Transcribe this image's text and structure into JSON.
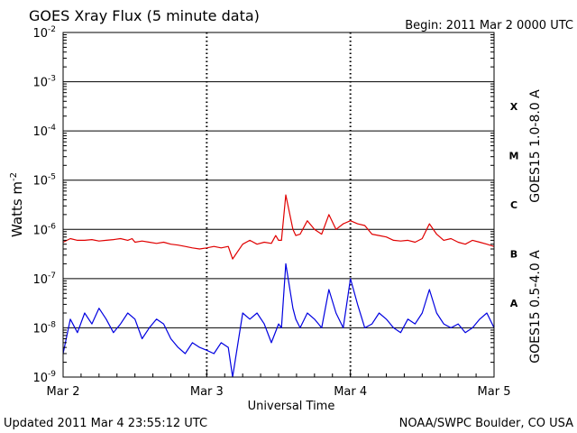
{
  "chart_data": {
    "type": "line",
    "title": "GOES Xray Flux (5 minute data)",
    "begin_label": "Begin:  2011 Mar 2 0000 UTC",
    "xlabel": "Universal Time",
    "ylabel": "Watts m",
    "ylabel_exponent": "-2",
    "y_scale": "log",
    "ylim": [
      1e-09,
      0.01
    ],
    "xlim_days": [
      0,
      3
    ],
    "x_ticks": [
      {
        "day": 0,
        "label": "Mar 2"
      },
      {
        "day": 1,
        "label": "Mar 3"
      },
      {
        "day": 2,
        "label": "Mar 4"
      },
      {
        "day": 3,
        "label": "Mar 5"
      }
    ],
    "y_ticks": [
      {
        "exp": -2,
        "label": "10",
        "sup": "-2"
      },
      {
        "exp": -3,
        "label": "10",
        "sup": "-3"
      },
      {
        "exp": -4,
        "label": "10",
        "sup": "-4"
      },
      {
        "exp": -5,
        "label": "10",
        "sup": "-5"
      },
      {
        "exp": -6,
        "label": "10",
        "sup": "-6"
      },
      {
        "exp": -7,
        "label": "10",
        "sup": "-7"
      },
      {
        "exp": -8,
        "label": "10",
        "sup": "-8"
      },
      {
        "exp": -9,
        "label": "10",
        "sup": "-9"
      }
    ],
    "flare_classes": [
      {
        "label": "X",
        "exp": -3.5
      },
      {
        "label": "M",
        "exp": -4.5
      },
      {
        "label": "C",
        "exp": -5.5
      },
      {
        "label": "B",
        "exp": -6.5
      },
      {
        "label": "A",
        "exp": -7.5
      }
    ],
    "grid": true,
    "series": [
      {
        "name": "GOES15 1.0-8.0 A",
        "color": "#e00000",
        "x": [
          0.0,
          0.05,
          0.1,
          0.15,
          0.2,
          0.25,
          0.3,
          0.35,
          0.4,
          0.45,
          0.48,
          0.5,
          0.55,
          0.6,
          0.65,
          0.7,
          0.75,
          0.8,
          0.85,
          0.9,
          0.95,
          1.0,
          1.05,
          1.1,
          1.15,
          1.18,
          1.25,
          1.3,
          1.35,
          1.4,
          1.45,
          1.48,
          1.5,
          1.52,
          1.55,
          1.6,
          1.62,
          1.65,
          1.7,
          1.75,
          1.8,
          1.85,
          1.9,
          1.95,
          2.0,
          2.05,
          2.1,
          2.15,
          2.2,
          2.25,
          2.3,
          2.35,
          2.4,
          2.45,
          2.5,
          2.55,
          2.6,
          2.65,
          2.7,
          2.75,
          2.8,
          2.85,
          2.9,
          2.95,
          3.0
        ],
        "y": [
          5.5e-07,
          6.5e-07,
          6e-07,
          6e-07,
          6.2e-07,
          5.8e-07,
          6e-07,
          6.2e-07,
          6.5e-07,
          6e-07,
          6.5e-07,
          5.5e-07,
          5.8e-07,
          5.5e-07,
          5.2e-07,
          5.5e-07,
          5e-07,
          4.8e-07,
          4.5e-07,
          4.2e-07,
          4e-07,
          4.2e-07,
          4.5e-07,
          4.2e-07,
          4.5e-07,
          2.5e-07,
          5e-07,
          6e-07,
          5e-07,
          5.5e-07,
          5.2e-07,
          7.5e-07,
          6e-07,
          6e-07,
          5e-06,
          1e-06,
          7.5e-07,
          8e-07,
          1.5e-06,
          1e-06,
          8e-07,
          2e-06,
          1e-06,
          1.3e-06,
          1.5e-06,
          1.3e-06,
          1.2e-06,
          8e-07,
          7.5e-07,
          7e-07,
          6e-07,
          5.8e-07,
          6e-07,
          5.5e-07,
          6.5e-07,
          1.3e-06,
          8e-07,
          6e-07,
          6.5e-07,
          5.5e-07,
          5e-07,
          6e-07,
          5.5e-07,
          5e-07,
          4.5e-07
        ]
      },
      {
        "name": "GOES15 0.5-4.0 A",
        "color": "#0000e0",
        "x": [
          0.0,
          0.05,
          0.1,
          0.15,
          0.2,
          0.25,
          0.3,
          0.35,
          0.4,
          0.45,
          0.5,
          0.55,
          0.6,
          0.65,
          0.7,
          0.75,
          0.8,
          0.85,
          0.9,
          0.95,
          1.0,
          1.05,
          1.1,
          1.15,
          1.18,
          1.25,
          1.3,
          1.35,
          1.4,
          1.45,
          1.5,
          1.52,
          1.55,
          1.6,
          1.62,
          1.65,
          1.7,
          1.75,
          1.8,
          1.85,
          1.9,
          1.95,
          2.0,
          2.05,
          2.1,
          2.15,
          2.2,
          2.25,
          2.3,
          2.35,
          2.4,
          2.45,
          2.5,
          2.55,
          2.6,
          2.65,
          2.7,
          2.75,
          2.8,
          2.85,
          2.9,
          2.95,
          3.0
        ],
        "y": [
          3e-09,
          1.5e-08,
          8e-09,
          2e-08,
          1.2e-08,
          2.5e-08,
          1.5e-08,
          8e-09,
          1.2e-08,
          2e-08,
          1.5e-08,
          6e-09,
          1e-08,
          1.5e-08,
          1.2e-08,
          6e-09,
          4e-09,
          3e-09,
          5e-09,
          4e-09,
          3.5e-09,
          3e-09,
          5e-09,
          4e-09,
          1e-09,
          2e-08,
          1.5e-08,
          2e-08,
          1.2e-08,
          5e-09,
          1.2e-08,
          1e-08,
          2e-07,
          2.5e-08,
          1.5e-08,
          1e-08,
          2e-08,
          1.5e-08,
          1e-08,
          6e-08,
          2e-08,
          1e-08,
          1e-07,
          3e-08,
          1e-08,
          1.2e-08,
          2e-08,
          1.5e-08,
          1e-08,
          8e-09,
          1.5e-08,
          1.2e-08,
          2e-08,
          6e-08,
          2e-08,
          1.2e-08,
          1e-08,
          1.2e-08,
          8e-09,
          1e-08,
          1.5e-08,
          2e-08,
          1e-08
        ]
      }
    ]
  },
  "footer": {
    "updated": "Updated 2011 Mar  4 23:55:12 UTC",
    "credit": "NOAA/SWPC Boulder, CO USA"
  }
}
